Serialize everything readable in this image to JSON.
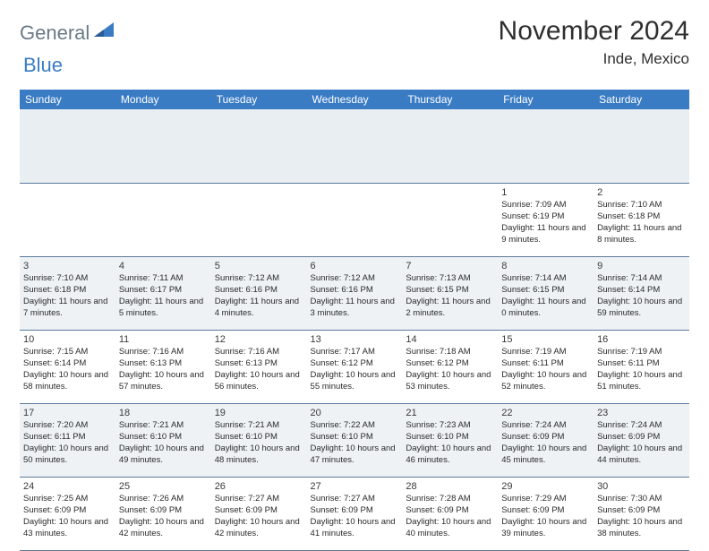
{
  "logo": {
    "general": "General",
    "blue": "Blue"
  },
  "title": {
    "month": "November 2024",
    "location": "Inde, Mexico"
  },
  "colors": {
    "header_bg": "#3a7cc4",
    "header_text": "#ffffff",
    "shaded_row": "#eef2f5",
    "spacer_bg": "#e9eef2",
    "border": "#5b7b9a",
    "logo_general": "#6a7a87",
    "logo_blue": "#3a7cc4",
    "body_text": "#2a2a2a"
  },
  "weekdays": [
    "Sunday",
    "Monday",
    "Tuesday",
    "Wednesday",
    "Thursday",
    "Friday",
    "Saturday"
  ],
  "calendar": {
    "type": "table",
    "rows": 5,
    "cols": 7,
    "shaded_rows": [
      1,
      3
    ],
    "cells": [
      [
        null,
        null,
        null,
        null,
        null,
        {
          "day": "1",
          "sunrise": "7:09 AM",
          "sunset": "6:19 PM",
          "daylight": "11 hours and 9 minutes."
        },
        {
          "day": "2",
          "sunrise": "7:10 AM",
          "sunset": "6:18 PM",
          "daylight": "11 hours and 8 minutes."
        }
      ],
      [
        {
          "day": "3",
          "sunrise": "7:10 AM",
          "sunset": "6:18 PM",
          "daylight": "11 hours and 7 minutes."
        },
        {
          "day": "4",
          "sunrise": "7:11 AM",
          "sunset": "6:17 PM",
          "daylight": "11 hours and 5 minutes."
        },
        {
          "day": "5",
          "sunrise": "7:12 AM",
          "sunset": "6:16 PM",
          "daylight": "11 hours and 4 minutes."
        },
        {
          "day": "6",
          "sunrise": "7:12 AM",
          "sunset": "6:16 PM",
          "daylight": "11 hours and 3 minutes."
        },
        {
          "day": "7",
          "sunrise": "7:13 AM",
          "sunset": "6:15 PM",
          "daylight": "11 hours and 2 minutes."
        },
        {
          "day": "8",
          "sunrise": "7:14 AM",
          "sunset": "6:15 PM",
          "daylight": "11 hours and 0 minutes."
        },
        {
          "day": "9",
          "sunrise": "7:14 AM",
          "sunset": "6:14 PM",
          "daylight": "10 hours and 59 minutes."
        }
      ],
      [
        {
          "day": "10",
          "sunrise": "7:15 AM",
          "sunset": "6:14 PM",
          "daylight": "10 hours and 58 minutes."
        },
        {
          "day": "11",
          "sunrise": "7:16 AM",
          "sunset": "6:13 PM",
          "daylight": "10 hours and 57 minutes."
        },
        {
          "day": "12",
          "sunrise": "7:16 AM",
          "sunset": "6:13 PM",
          "daylight": "10 hours and 56 minutes."
        },
        {
          "day": "13",
          "sunrise": "7:17 AM",
          "sunset": "6:12 PM",
          "daylight": "10 hours and 55 minutes."
        },
        {
          "day": "14",
          "sunrise": "7:18 AM",
          "sunset": "6:12 PM",
          "daylight": "10 hours and 53 minutes."
        },
        {
          "day": "15",
          "sunrise": "7:19 AM",
          "sunset": "6:11 PM",
          "daylight": "10 hours and 52 minutes."
        },
        {
          "day": "16",
          "sunrise": "7:19 AM",
          "sunset": "6:11 PM",
          "daylight": "10 hours and 51 minutes."
        }
      ],
      [
        {
          "day": "17",
          "sunrise": "7:20 AM",
          "sunset": "6:11 PM",
          "daylight": "10 hours and 50 minutes."
        },
        {
          "day": "18",
          "sunrise": "7:21 AM",
          "sunset": "6:10 PM",
          "daylight": "10 hours and 49 minutes."
        },
        {
          "day": "19",
          "sunrise": "7:21 AM",
          "sunset": "6:10 PM",
          "daylight": "10 hours and 48 minutes."
        },
        {
          "day": "20",
          "sunrise": "7:22 AM",
          "sunset": "6:10 PM",
          "daylight": "10 hours and 47 minutes."
        },
        {
          "day": "21",
          "sunrise": "7:23 AM",
          "sunset": "6:10 PM",
          "daylight": "10 hours and 46 minutes."
        },
        {
          "day": "22",
          "sunrise": "7:24 AM",
          "sunset": "6:09 PM",
          "daylight": "10 hours and 45 minutes."
        },
        {
          "day": "23",
          "sunrise": "7:24 AM",
          "sunset": "6:09 PM",
          "daylight": "10 hours and 44 minutes."
        }
      ],
      [
        {
          "day": "24",
          "sunrise": "7:25 AM",
          "sunset": "6:09 PM",
          "daylight": "10 hours and 43 minutes."
        },
        {
          "day": "25",
          "sunrise": "7:26 AM",
          "sunset": "6:09 PM",
          "daylight": "10 hours and 42 minutes."
        },
        {
          "day": "26",
          "sunrise": "7:27 AM",
          "sunset": "6:09 PM",
          "daylight": "10 hours and 42 minutes."
        },
        {
          "day": "27",
          "sunrise": "7:27 AM",
          "sunset": "6:09 PM",
          "daylight": "10 hours and 41 minutes."
        },
        {
          "day": "28",
          "sunrise": "7:28 AM",
          "sunset": "6:09 PM",
          "daylight": "10 hours and 40 minutes."
        },
        {
          "day": "29",
          "sunrise": "7:29 AM",
          "sunset": "6:09 PM",
          "daylight": "10 hours and 39 minutes."
        },
        {
          "day": "30",
          "sunrise": "7:30 AM",
          "sunset": "6:09 PM",
          "daylight": "10 hours and 38 minutes."
        }
      ]
    ]
  },
  "labels": {
    "sunrise": "Sunrise:",
    "sunset": "Sunset:",
    "daylight": "Daylight:"
  }
}
